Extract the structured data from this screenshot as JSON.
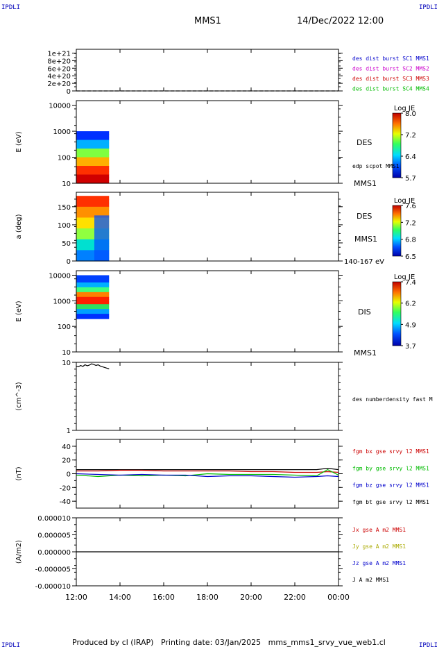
{
  "header": {
    "corner_label": "IPDLI",
    "spacecraft": "MMS1",
    "datetime": "14/Dec/2022 12:00"
  },
  "footer": {
    "text": "Produced by cl (IRAP)   Printing date: 03/Jan/2025   mms_mms1_srvy_vue_web1.cl"
  },
  "colors": {
    "c1": "#0000cc",
    "c2": "#cc00cc",
    "c3": "#cc0000",
    "c4": "#00bb00",
    "black": "#000000"
  },
  "time_axis": {
    "ticks": [
      "12:00",
      "14:00",
      "16:00",
      "18:00",
      "20:00",
      "22:00",
      "00:00"
    ],
    "start_hour": 12,
    "end_hour": 24
  },
  "chart_data": [
    {
      "id": "panel1",
      "type": "line",
      "ylabel": "",
      "ylim": [
        0,
        1.1e+21
      ],
      "ticks": [
        "1e+21",
        "8e+20",
        "6e+20",
        "4e+20",
        "2e+20",
        "0"
      ],
      "tick_values": [
        1e+21,
        8e+20,
        6e+20,
        4e+20,
        2e+20,
        0
      ],
      "legend": [
        {
          "text": "des dist burst SC1 MMS1",
          "color": "#0000cc"
        },
        {
          "text": "des dist burst SC2 MMS2",
          "color": "#cc00cc"
        },
        {
          "text": "des dist burst SC3 MMS3",
          "color": "#cc0000"
        },
        {
          "text": "des dist burst SC4 MMS4",
          "color": "#00bb00"
        }
      ],
      "series": [
        {
          "x": [
            12,
            24
          ],
          "y": [
            0,
            0
          ],
          "dashed": true
        }
      ]
    },
    {
      "id": "panel2",
      "type": "heatmap",
      "ylabel": "E (eV)",
      "scale": "log",
      "ylim": [
        10,
        15000
      ],
      "ticks": [
        "10000",
        "1000",
        "100",
        "10"
      ],
      "tick_values": [
        10000,
        1000,
        100,
        10
      ],
      "data_range_x": [
        12,
        13.5
      ],
      "data_range_y": [
        10,
        1000
      ],
      "colorbar": {
        "title": "Log JE",
        "ticks": [
          "8.0",
          "7.2",
          "6.4",
          "5.7"
        ],
        "tick_values": [
          8.0,
          7.2,
          6.4,
          5.7
        ]
      },
      "labels": [
        "DES",
        "edp scpot MMS1",
        "MMS1"
      ]
    },
    {
      "id": "panel3",
      "type": "heatmap",
      "ylabel": "a (deg)",
      "scale": "linear",
      "ylim": [
        0,
        190
      ],
      "ticks": [
        "150",
        "100",
        "50",
        "0"
      ],
      "tick_values": [
        150,
        100,
        50,
        0
      ],
      "data_range_x": [
        12,
        13.5
      ],
      "data_range_y": [
        0,
        180
      ],
      "colorbar": {
        "title": "Log JE",
        "ticks": [
          "7.6",
          "7.2",
          "6.8",
          "6.5"
        ],
        "tick_values": [
          7.6,
          7.2,
          6.8,
          6.5
        ]
      },
      "labels": [
        "DES",
        "MMS1",
        "140-167 eV"
      ]
    },
    {
      "id": "panel4",
      "type": "heatmap",
      "ylabel": "E (eV)",
      "scale": "log",
      "ylim": [
        10,
        15000
      ],
      "ticks": [
        "10000",
        "1000",
        "100",
        "10"
      ],
      "tick_values": [
        10000,
        1000,
        100,
        10
      ],
      "data_range_x": [
        12,
        13.5
      ],
      "data_range_y": [
        200,
        10000
      ],
      "colorbar": {
        "title": "Log JE",
        "ticks": [
          "7.4",
          "6.2",
          "4.9",
          "3.7"
        ],
        "tick_values": [
          7.4,
          6.2,
          4.9,
          3.7
        ]
      },
      "labels": [
        "DIS",
        "MMS1"
      ]
    },
    {
      "id": "panel5",
      "type": "line",
      "ylabel": "(cm^-3)",
      "scale": "log",
      "ylim": [
        1,
        10
      ],
      "ticks": [
        "10",
        "1"
      ],
      "tick_values": [
        10,
        1
      ],
      "legend": [
        {
          "text": "des numberdensity fast M",
          "color": "#000000"
        }
      ],
      "series": [
        {
          "name": "des numberdensity fast M",
          "color": "#000000",
          "x": [
            12.0,
            12.1,
            12.2,
            12.3,
            12.4,
            12.5,
            12.6,
            12.7,
            12.8,
            12.9,
            13.0,
            13.1,
            13.2,
            13.3,
            13.4,
            13.5
          ],
          "y": [
            8.8,
            8.6,
            9.0,
            8.7,
            9.2,
            8.9,
            9.1,
            9.5,
            9.3,
            9.0,
            9.2,
            8.8,
            8.6,
            8.4,
            8.2,
            8.0
          ]
        }
      ]
    },
    {
      "id": "panel6",
      "type": "line",
      "ylabel": "(nT)",
      "ylim": [
        -50,
        50
      ],
      "ticks": [
        "40",
        "20",
        "0",
        "-20",
        "-40"
      ],
      "tick_values": [
        40,
        20,
        0,
        -20,
        -40
      ],
      "legend": [
        {
          "text": "fgm bx gse srvy l2 MMS1",
          "color": "#cc0000"
        },
        {
          "text": "fgm by gse srvy l2 MMS1",
          "color": "#00bb00"
        },
        {
          "text": "fgm bz gse srvy l2 MMS1",
          "color": "#0000cc"
        },
        {
          "text": "fgm bt gse srvy l2 MMS1",
          "color": "#000000"
        }
      ],
      "series": [
        {
          "name": "fgm bt gse srvy l2 MMS1",
          "color": "#000000",
          "x": [
            12,
            13,
            14,
            15,
            16,
            17,
            18,
            19,
            20,
            21,
            22,
            23,
            23.5,
            24
          ],
          "y": [
            6,
            6,
            6,
            6,
            6,
            6,
            6,
            6,
            6,
            6,
            6,
            6,
            8,
            6
          ]
        },
        {
          "name": "fgm bx gse srvy l2 MMS1",
          "color": "#cc0000",
          "x": [
            12,
            13,
            14,
            15,
            16,
            17,
            18,
            19,
            20,
            21,
            22,
            23,
            23.5,
            24
          ],
          "y": [
            4,
            4,
            5,
            5,
            4,
            4,
            4,
            4,
            3,
            3,
            2,
            2,
            3,
            2
          ]
        },
        {
          "name": "fgm by gse srvy l2 MMS1",
          "color": "#00bb00",
          "x": [
            12,
            13,
            14,
            15,
            16,
            17,
            18,
            19,
            20,
            21,
            22,
            23,
            23.5,
            24
          ],
          "y": [
            -2,
            -4,
            -2,
            -3,
            -2,
            -3,
            0,
            -1,
            -1,
            -1,
            -2,
            -3,
            6,
            -2
          ]
        },
        {
          "name": "fgm bz gse srvy l2 MMS1",
          "color": "#0000cc",
          "x": [
            12,
            13,
            14,
            15,
            16,
            17,
            18,
            19,
            20,
            21,
            22,
            23,
            23.5,
            24
          ],
          "y": [
            0,
            -1,
            -2,
            -1,
            -2,
            -2,
            -4,
            -3,
            -3,
            -4,
            -5,
            -4,
            -3,
            -4
          ]
        }
      ]
    },
    {
      "id": "panel7",
      "type": "line",
      "ylabel": "(A/m2)",
      "ylim": [
        -1e-05,
        1e-05
      ],
      "ticks": [
        "0.000010",
        "0.000005",
        "0.000000",
        "-0.000005",
        "-0.000010"
      ],
      "tick_values": [
        1e-05,
        5e-06,
        0,
        -5e-06,
        -1e-05
      ],
      "legend": [
        {
          "text": "Jx gse A m2 MMS1",
          "color": "#cc0000"
        },
        {
          "text": "Jy gse A m2 MMS1",
          "color": "#aaaa00"
        },
        {
          "text": "Jz gse A m2 MMS1",
          "color": "#0000cc"
        },
        {
          "text": "J A m2 MMS1",
          "color": "#000000"
        }
      ],
      "series": [
        {
          "name": "J A m2 MMS1",
          "color": "#000000",
          "x": [
            12,
            24
          ],
          "y": [
            0,
            0
          ]
        }
      ]
    }
  ]
}
